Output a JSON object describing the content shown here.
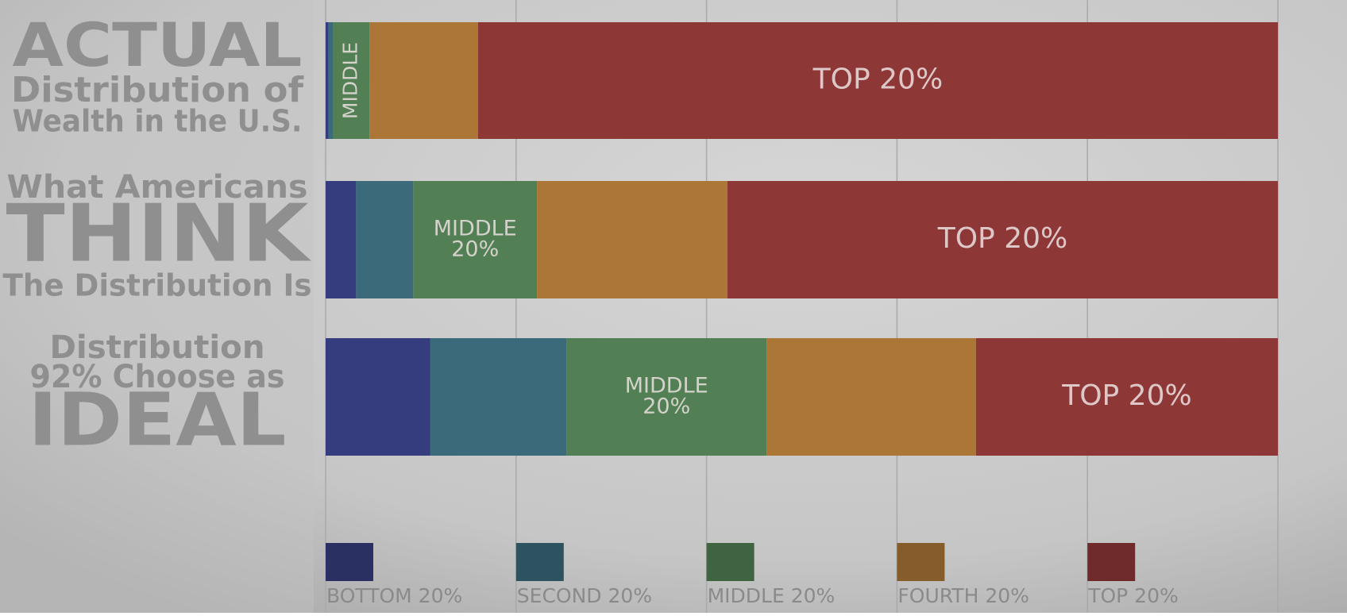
{
  "chart_data": {
    "type": "stacked-barh",
    "categories": [
      [
        "ACTUAL",
        "Distribution of",
        "Wealth in the U.S."
      ],
      [
        "What Americans",
        "THINK",
        "The Distribution Is"
      ],
      [
        "Distribution",
        "92% Choose as",
        "IDEAL"
      ]
    ],
    "series": [
      {
        "name": "BOTTOM 20%",
        "color": "#363d7e",
        "values": [
          0.3,
          3.2,
          11.0
        ]
      },
      {
        "name": "SECOND 20%",
        "color": "#3b6b7b",
        "values": [
          0.5,
          6.0,
          14.3
        ]
      },
      {
        "name": "MIDDLE 20%",
        "color": "#527f53",
        "values": [
          3.8,
          13.0,
          21.0
        ],
        "bar_labels": [
          "MIDDLE",
          [
            "MIDDLE",
            "20%"
          ],
          [
            "MIDDLE",
            "20%"
          ]
        ]
      },
      {
        "name": "FOURTH 20%",
        "color": "#ab7636",
        "values": [
          11.4,
          20.0,
          22.0
        ]
      },
      {
        "name": "TOP 20%",
        "color": "#8e3737",
        "values": [
          84.0,
          57.8,
          31.7
        ],
        "bar_labels": [
          "TOP 20%",
          "TOP 20%",
          "TOP 20%"
        ]
      }
    ],
    "xlim": [
      0,
      100
    ],
    "xticks": [
      0,
      20,
      40,
      60,
      80,
      100
    ],
    "grid": true
  }
}
